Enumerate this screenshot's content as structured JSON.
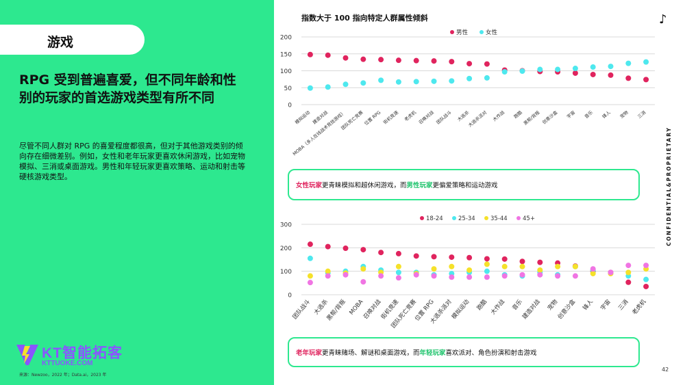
{
  "left_panel": {
    "category_tag": "游戏",
    "headline": "RPG 受到普遍喜爱，但不同年龄和性别的玩家的首选游戏类型有所不同",
    "body": "尽管不同人群对 RPG 的喜爱程度都很高，但对于其他游戏类别的倾向存在细微差别。例如，女性和老年玩家更喜欢休闲游戏，比如宠物模拟、三消或桌面游戏。男性和年轻玩家更喜欢策略、运动和射击等硬核游戏类型。",
    "logo_text": "KT智能拓客",
    "logo_url": "KTTUOKE.COM",
    "source": "来源：Newzoo，2022 年；Data.ai，2023 年"
  },
  "header": {
    "chart_title": "指数大于 100 指向特定人群属性倾斜",
    "vertical_label": "CONFIDENTIAL&PROPRIETARY",
    "page_number": "42"
  },
  "colors": {
    "green": "#2de88f",
    "male": "#e0245e",
    "female": "#4ee8ee",
    "age_18_24": "#e0245e",
    "age_25_34": "#4ee8ee",
    "age_35_44": "#f5e12a",
    "age_45_plus": "#f075e3"
  },
  "callout1": {
    "part1": "女性玩家",
    "part2": "更青睐模拟和超休闲游戏，而",
    "part3": "男性玩家",
    "part4": "更偏爱策略和运动游戏"
  },
  "callout2": {
    "part1": "老年玩家",
    "part2": "更青睐赌场、解谜和桌面游戏，而",
    "part3": "年轻玩家",
    "part4": "喜欢派对、角色扮演和射击游戏"
  },
  "chart_data": [
    {
      "type": "scatter",
      "title": "指数大于 100 指向特定人群属性倾斜",
      "ylim": [
        0,
        200
      ],
      "yticks": [
        0,
        50,
        100,
        150,
        200
      ],
      "legend_position": "top",
      "categories": [
        "模拟运动",
        "建造对战",
        "MOBA（多人在线战术竞技游戏）",
        "团队死亡竞赛",
        "位置 RPG",
        "街机竞速",
        "老虎机",
        "召唤对战",
        "团队战斗",
        "大逃杀",
        "大逃杀派对",
        "大作战",
        "跑酷",
        "黑帮/背叛",
        "创意沙盒",
        "宇宙",
        "音乐",
        "锋人",
        "宠物",
        "三消"
      ],
      "series": [
        {
          "name": "男性",
          "values": [
            148,
            146,
            138,
            134,
            133,
            131,
            130,
            129,
            127,
            121,
            120,
            102,
            100,
            98,
            97,
            93,
            89,
            87,
            78,
            74
          ]
        },
        {
          "name": "女性",
          "values": [
            49,
            52,
            60,
            64,
            72,
            67,
            68,
            69,
            70,
            77,
            79,
            97,
            99,
            104,
            104,
            107,
            111,
            113,
            122,
            126
          ]
        }
      ]
    },
    {
      "type": "scatter",
      "title": "",
      "ylim": [
        0,
        300
      ],
      "yticks": [
        0,
        100,
        200,
        300
      ],
      "legend_position": "top",
      "categories": [
        "团队战斗",
        "大逃杀",
        "黑帮/背叛",
        "MOBA",
        "召唤对战",
        "街机竞速",
        "团队死亡竞赛",
        "位置 RPG",
        "大逃杀派对",
        "模拟运动",
        "跑酷",
        "大作战",
        "音乐",
        "建造对战",
        "宠物",
        "创意沙盒",
        "锋人",
        "宇宙",
        "三消",
        "老虎机"
      ],
      "series": [
        {
          "name": "18-24",
          "values": [
            215,
            205,
            198,
            192,
            180,
            175,
            165,
            162,
            160,
            158,
            153,
            152,
            142,
            138,
            135,
            122,
            100,
            95,
            53,
            35
          ]
        },
        {
          "name": "25-34",
          "values": [
            155,
            93,
            100,
            120,
            105,
            95,
            95,
            85,
            90,
            95,
            100,
            85,
            80,
            95,
            85,
            120,
            105,
            92,
            80,
            65
          ]
        },
        {
          "name": "35-44",
          "values": [
            80,
            100,
            92,
            110,
            95,
            120,
            90,
            110,
            120,
            105,
            130,
            120,
            120,
            105,
            120,
            120,
            90,
            90,
            95,
            110
          ]
        },
        {
          "name": "45+",
          "values": [
            52,
            80,
            85,
            55,
            80,
            72,
            85,
            80,
            75,
            75,
            75,
            80,
            85,
            85,
            80,
            80,
            110,
            95,
            125,
            125
          ]
        }
      ]
    }
  ]
}
